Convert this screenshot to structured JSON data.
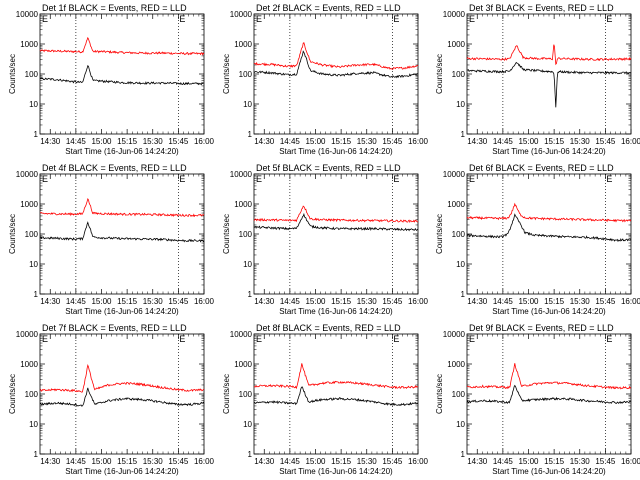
{
  "figure": {
    "ylabel": "Counts/sec",
    "xlabel": "Start Time (16-Jun-06 14:24:20)",
    "x_tick_labels": [
      "14:30",
      "14:45",
      "15:00",
      "15:15",
      "15:30",
      "15:45",
      "16:00"
    ],
    "y_tick_labels": [
      "1",
      "10",
      "100",
      "1000",
      "10000"
    ],
    "colors": {
      "events": "#000000",
      "lld": "#ff0000",
      "axes": "#000000",
      "background": "#ffffff"
    }
  },
  "chart_data": [
    {
      "type": "line",
      "title": "Det 1f  BLACK = Events, RED = LLD",
      "markers": [
        "E",
        "E"
      ],
      "xlabel": "Start Time (16-Jun-06 14:24:20)",
      "ylabel": "Counts/sec",
      "x_unit": "minutes after 14:24:20",
      "xlim": [
        0,
        96
      ],
      "ylim": [
        1,
        10000
      ],
      "yscale": "log",
      "flare_x": 28,
      "series": [
        {
          "name": "Events",
          "color": "#000000",
          "x": [
            0,
            10,
            20,
            25,
            28,
            31,
            36,
            48,
            60,
            72,
            84,
            96
          ],
          "values": [
            70,
            65,
            55,
            52,
            200,
            60,
            58,
            52,
            50,
            50,
            48,
            48
          ]
        },
        {
          "name": "LLD",
          "color": "#ff0000",
          "x": [
            0,
            10,
            20,
            25,
            28,
            31,
            36,
            48,
            60,
            72,
            84,
            96
          ],
          "values": [
            600,
            580,
            560,
            550,
            1600,
            560,
            560,
            520,
            500,
            500,
            480,
            480
          ]
        }
      ]
    },
    {
      "type": "line",
      "title": "Det 2f  BLACK = Events, RED = LLD",
      "markers": [
        "E",
        "E"
      ],
      "xlabel": "Start Time (16-Jun-06 14:24:20)",
      "ylabel": "Counts/sec",
      "x_unit": "minutes after 14:24:20",
      "xlim": [
        0,
        96
      ],
      "ylim": [
        1,
        10000
      ],
      "yscale": "log",
      "flare_x": 29,
      "series": [
        {
          "name": "Events",
          "color": "#000000",
          "x": [
            0,
            10,
            20,
            25,
            29,
            33,
            40,
            50,
            60,
            70,
            80,
            88,
            96
          ],
          "values": [
            120,
            110,
            95,
            100,
            600,
            130,
            100,
            90,
            105,
            110,
            80,
            85,
            100
          ]
        },
        {
          "name": "LLD",
          "color": "#ff0000",
          "x": [
            0,
            10,
            20,
            25,
            29,
            33,
            40,
            50,
            60,
            70,
            80,
            88,
            96
          ],
          "values": [
            220,
            210,
            180,
            190,
            1100,
            260,
            200,
            170,
            200,
            210,
            150,
            160,
            190
          ]
        }
      ]
    },
    {
      "type": "line",
      "title": "Det 3f  BLACK = Events, RED = LLD",
      "markers": [
        "E",
        "E"
      ],
      "xlabel": "Start Time (16-Jun-06 14:24:20)",
      "ylabel": "Counts/sec",
      "x_unit": "minutes after 14:24:20",
      "xlim": [
        0,
        96
      ],
      "ylim": [
        1,
        10000
      ],
      "yscale": "log",
      "flare_x": 29,
      "series": [
        {
          "name": "Events",
          "color": "#000000",
          "x": [
            0,
            10,
            20,
            25,
            29,
            33,
            40,
            50,
            51,
            52,
            53,
            60,
            70,
            80,
            96
          ],
          "values": [
            130,
            125,
            120,
            125,
            250,
            140,
            130,
            120,
            100,
            8,
            120,
            115,
            110,
            110,
            110
          ]
        },
        {
          "name": "LLD",
          "color": "#ff0000",
          "x": [
            0,
            10,
            20,
            25,
            29,
            33,
            40,
            50,
            51,
            52,
            53,
            60,
            70,
            80,
            96
          ],
          "values": [
            330,
            320,
            310,
            320,
            900,
            350,
            330,
            320,
            1200,
            200,
            330,
            320,
            310,
            310,
            320
          ]
        }
      ]
    },
    {
      "type": "line",
      "title": "Det 4f  BLACK = Events, RED = LLD",
      "markers": [
        "E",
        "E"
      ],
      "xlabel": "Start Time (16-Jun-06 14:24:20)",
      "ylabel": "Counts/sec",
      "x_unit": "minutes after 14:24:20",
      "xlim": [
        0,
        96
      ],
      "ylim": [
        1,
        10000
      ],
      "yscale": "log",
      "flare_x": 28,
      "series": [
        {
          "name": "Events",
          "color": "#000000",
          "x": [
            0,
            10,
            20,
            25,
            28,
            31,
            36,
            48,
            60,
            72,
            84,
            96
          ],
          "values": [
            75,
            72,
            68,
            70,
            250,
            80,
            75,
            70,
            68,
            66,
            60,
            60
          ]
        },
        {
          "name": "LLD",
          "color": "#ff0000",
          "x": [
            0,
            10,
            20,
            25,
            28,
            31,
            36,
            48,
            60,
            72,
            84,
            96
          ],
          "values": [
            480,
            470,
            460,
            470,
            1500,
            490,
            480,
            460,
            450,
            440,
            420,
            420
          ]
        }
      ]
    },
    {
      "type": "line",
      "title": "Det 5f  BLACK = Events, RED = LLD",
      "markers": [
        "E",
        "E"
      ],
      "xlabel": "Start Time (16-Jun-06 14:24:20)",
      "ylabel": "Counts/sec",
      "x_unit": "minutes after 14:24:20",
      "xlim": [
        0,
        96
      ],
      "ylim": [
        1,
        10000
      ],
      "yscale": "log",
      "flare_x": 29,
      "series": [
        {
          "name": "Events",
          "color": "#000000",
          "x": [
            0,
            10,
            20,
            25,
            29,
            33,
            40,
            50,
            60,
            70,
            80,
            88,
            96
          ],
          "values": [
            170,
            160,
            150,
            155,
            450,
            180,
            160,
            150,
            150,
            150,
            145,
            140,
            140
          ]
        },
        {
          "name": "LLD",
          "color": "#ff0000",
          "x": [
            0,
            10,
            20,
            25,
            29,
            33,
            40,
            50,
            60,
            70,
            80,
            88,
            96
          ],
          "values": [
            300,
            295,
            285,
            290,
            900,
            320,
            300,
            290,
            285,
            280,
            275,
            270,
            270
          ]
        }
      ]
    },
    {
      "type": "line",
      "title": "Det 6f  BLACK = Events, RED = LLD",
      "markers": [
        "E",
        "E"
      ],
      "xlabel": "Start Time (16-Jun-06 14:24:20)",
      "ylabel": "Counts/sec",
      "x_unit": "minutes after 14:24:20",
      "xlim": [
        0,
        96
      ],
      "ylim": [
        1,
        10000
      ],
      "yscale": "log",
      "flare_x": 28,
      "series": [
        {
          "name": "Events",
          "color": "#000000",
          "x": [
            0,
            10,
            20,
            24,
            26,
            28,
            31,
            34,
            40,
            50,
            60,
            70,
            80,
            88,
            96
          ],
          "values": [
            90,
            85,
            80,
            100,
            200,
            420,
            230,
            110,
            90,
            85,
            80,
            78,
            70,
            62,
            65
          ]
        },
        {
          "name": "LLD",
          "color": "#ff0000",
          "x": [
            0,
            10,
            20,
            24,
            26,
            28,
            31,
            34,
            40,
            50,
            60,
            70,
            80,
            88,
            96
          ],
          "values": [
            350,
            340,
            330,
            340,
            500,
            1000,
            450,
            350,
            330,
            320,
            310,
            300,
            290,
            280,
            280
          ]
        }
      ]
    },
    {
      "type": "line",
      "title": "Det 7f  BLACK = Events, RED = LLD",
      "markers": [
        "E",
        "E"
      ],
      "xlabel": "Start Time (16-Jun-06 14:24:20)",
      "ylabel": "Counts/sec",
      "x_unit": "minutes after 14:24:20",
      "xlim": [
        0,
        96
      ],
      "ylim": [
        1,
        10000
      ],
      "yscale": "log",
      "flare_x": 28,
      "series": [
        {
          "name": "Events",
          "color": "#000000",
          "x": [
            0,
            10,
            20,
            25,
            28,
            32,
            40,
            50,
            60,
            70,
            80,
            88,
            96
          ],
          "values": [
            45,
            50,
            45,
            40,
            150,
            45,
            60,
            70,
            65,
            55,
            45,
            45,
            50
          ]
        },
        {
          "name": "LLD",
          "color": "#ff0000",
          "x": [
            0,
            10,
            20,
            25,
            28,
            32,
            40,
            50,
            60,
            70,
            80,
            88,
            96
          ],
          "values": [
            130,
            140,
            130,
            120,
            900,
            140,
            200,
            230,
            210,
            170,
            140,
            130,
            140
          ]
        }
      ]
    },
    {
      "type": "line",
      "title": "Det 8f  BLACK = Events, RED = LLD",
      "markers": [
        "E",
        "E"
      ],
      "xlabel": "Start Time (16-Jun-06 14:24:20)",
      "ylabel": "Counts/sec",
      "x_unit": "minutes after 14:24:20",
      "xlim": [
        0,
        96
      ],
      "ylim": [
        1,
        10000
      ],
      "yscale": "log",
      "flare_x": 28,
      "series": [
        {
          "name": "Events",
          "color": "#000000",
          "x": [
            0,
            10,
            20,
            25,
            28,
            32,
            40,
            50,
            60,
            70,
            80,
            88,
            96
          ],
          "values": [
            50,
            55,
            50,
            48,
            180,
            55,
            65,
            70,
            65,
            55,
            45,
            45,
            50
          ]
        },
        {
          "name": "LLD",
          "color": "#ff0000",
          "x": [
            0,
            10,
            20,
            25,
            28,
            32,
            40,
            50,
            60,
            70,
            80,
            88,
            96
          ],
          "values": [
            180,
            190,
            180,
            170,
            1000,
            190,
            230,
            250,
            230,
            200,
            170,
            165,
            175
          ]
        }
      ]
    },
    {
      "type": "line",
      "title": "Det 9f  BLACK = Events, RED = LLD",
      "markers": [
        "E",
        "E"
      ],
      "xlabel": "Start Time (16-Jun-06 14:24:20)",
      "ylabel": "Counts/sec",
      "x_unit": "minutes after 14:24:20",
      "xlim": [
        0,
        96
      ],
      "ylim": [
        1,
        10000
      ],
      "yscale": "log",
      "flare_x": 28,
      "series": [
        {
          "name": "Events",
          "color": "#000000",
          "x": [
            0,
            10,
            20,
            25,
            28,
            32,
            40,
            50,
            60,
            70,
            80,
            88,
            96
          ],
          "values": [
            55,
            60,
            55,
            52,
            200,
            60,
            65,
            70,
            68,
            60,
            55,
            52,
            55
          ]
        },
        {
          "name": "LLD",
          "color": "#ff0000",
          "x": [
            0,
            10,
            20,
            25,
            28,
            32,
            40,
            50,
            60,
            70,
            80,
            88,
            96
          ],
          "values": [
            170,
            180,
            170,
            165,
            1000,
            180,
            220,
            240,
            225,
            190,
            170,
            160,
            165
          ]
        }
      ]
    }
  ]
}
